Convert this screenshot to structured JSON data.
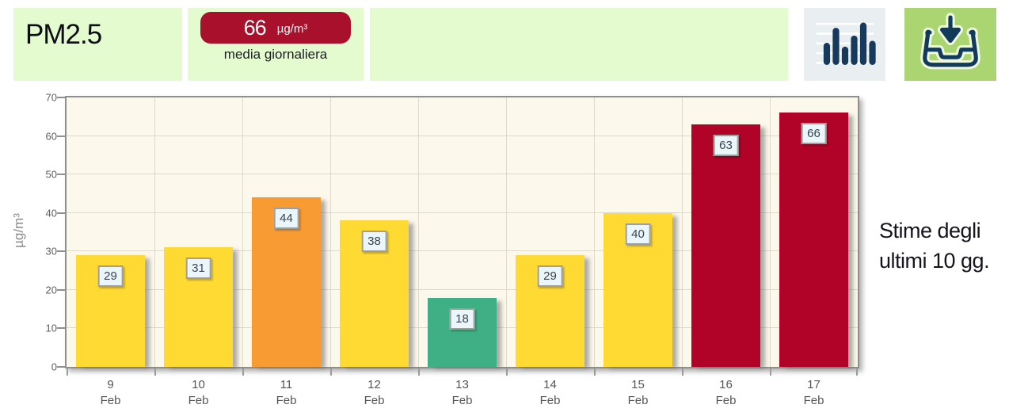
{
  "header": {
    "title": "PM2.5",
    "badge": {
      "value": "66",
      "unit": "µg/m³",
      "caption": "media giornaliera"
    },
    "buttons": {
      "chart_view": {
        "icon": "bar-chart-icon"
      },
      "download": {
        "icon": "download-inbox-icon"
      }
    },
    "tile_color": "#E4FACF",
    "chart_button_bg": "#E9EEF0",
    "download_button_bg": "#AAD571",
    "icon_color": "#16395C",
    "badge_color": "#A8102C"
  },
  "side_note": {
    "line1": "Stime degli",
    "line2": "ultimi 10 gg."
  },
  "chart_data": {
    "type": "bar",
    "title": "PM2.5 media giornaliera",
    "categories": [
      {
        "day": "9",
        "month": "Feb"
      },
      {
        "day": "10",
        "month": "Feb"
      },
      {
        "day": "11",
        "month": "Feb"
      },
      {
        "day": "12",
        "month": "Feb"
      },
      {
        "day": "13",
        "month": "Feb"
      },
      {
        "day": "14",
        "month": "Feb"
      },
      {
        "day": "15",
        "month": "Feb"
      },
      {
        "day": "16",
        "month": "Feb"
      },
      {
        "day": "17",
        "month": "Feb"
      }
    ],
    "values": [
      29,
      31,
      44,
      38,
      18,
      29,
      40,
      63,
      66
    ],
    "bar_levels": [
      "yellow",
      "yellow",
      "orange",
      "yellow",
      "green",
      "yellow",
      "yellow",
      "red",
      "red"
    ],
    "level_colors": {
      "yellow": "#FFDA33",
      "orange": "#F89B33",
      "green": "#3FAF85",
      "red": "#B00327"
    },
    "xlabel": "",
    "ylabel": "µg/m³",
    "ylim": [
      0,
      70
    ],
    "yticks": [
      0,
      10,
      20,
      30,
      40,
      50,
      60,
      70
    ],
    "grid": true,
    "legend": false,
    "plot_bg": "#FDF8EC"
  }
}
